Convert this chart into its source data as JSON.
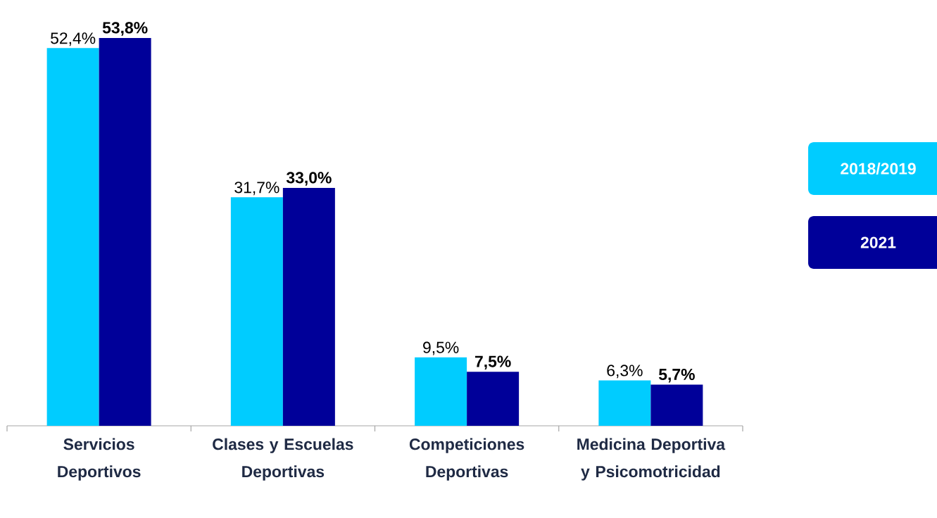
{
  "chart_data": {
    "type": "bar",
    "categories": [
      "Servicios Deportivos",
      "Clases y Escuelas Deportivas",
      "Competiciones Deportivas",
      "Medicina Deportiva y Psicomotricidad"
    ],
    "series": [
      {
        "name": "2018/2019",
        "color": "#00ccff",
        "values": [
          52.4,
          31.7,
          9.5,
          6.3
        ],
        "value_labels": [
          "52,4%",
          "31,7%",
          "9,5%",
          "6,3%"
        ]
      },
      {
        "name": "2021",
        "color": "#000099",
        "values": [
          53.8,
          33.0,
          7.5,
          5.7
        ],
        "value_labels": [
          "**53,8%**",
          "**33,0%**",
          "**7,5%**",
          "**5,7%**"
        ]
      }
    ],
    "legend": "right"
  }
}
